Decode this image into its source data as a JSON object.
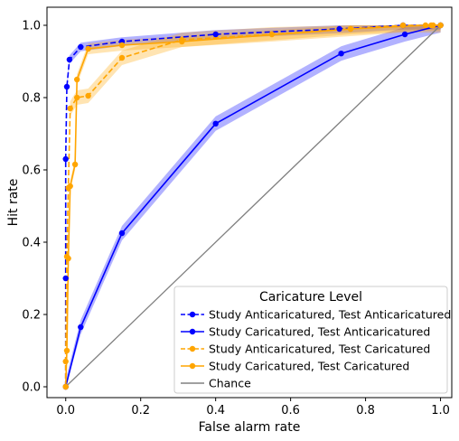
{
  "chart_data": {
    "type": "line",
    "xlabel": "False alarm rate",
    "ylabel": "Hit rate",
    "xlim": [
      -0.05,
      1.03
    ],
    "ylim": [
      -0.03,
      1.05
    ],
    "x_ticks": [
      "0.0",
      "0.2",
      "0.4",
      "0.6",
      "0.8",
      "1.0"
    ],
    "y_ticks": [
      "0.0",
      "0.2",
      "0.4",
      "0.6",
      "0.8",
      "1.0"
    ],
    "grid": false,
    "legend": {
      "title": "Caricature Level",
      "placement": "lower-right"
    },
    "series": [
      {
        "name": "Study Anticaricatured, Test Anticaricatured",
        "color": "#0000ff",
        "dash": "dashed",
        "marker": "circle",
        "band": 0.012,
        "points": [
          [
            0.0,
            0.0
          ],
          [
            0.0,
            0.3
          ],
          [
            0.0,
            0.63
          ],
          [
            0.003,
            0.83
          ],
          [
            0.01,
            0.905
          ],
          [
            0.04,
            0.94
          ],
          [
            0.15,
            0.955
          ],
          [
            0.4,
            0.975
          ],
          [
            0.73,
            0.99
          ],
          [
            0.9,
            1.0
          ],
          [
            1.0,
            1.0
          ]
        ]
      },
      {
        "name": "Study Caricatured, Test Anticaricatured",
        "color": "#0000ff",
        "dash": "solid",
        "marker": "circle",
        "band": 0.02,
        "points": [
          [
            0.0,
            0.0
          ],
          [
            0.04,
            0.165
          ],
          [
            0.15,
            0.425
          ],
          [
            0.4,
            0.728
          ],
          [
            0.735,
            0.922
          ],
          [
            0.905,
            0.975
          ],
          [
            1.0,
            1.0
          ]
        ]
      },
      {
        "name": "Study Anticaricatured, Test Caricatured",
        "color": "#ffa500",
        "dash": "dashed",
        "marker": "circle",
        "band": 0.02,
        "points": [
          [
            0.0,
            0.0
          ],
          [
            0.0,
            0.07
          ],
          [
            0.003,
            0.36
          ],
          [
            0.007,
            0.55
          ],
          [
            0.012,
            0.77
          ],
          [
            0.03,
            0.8
          ],
          [
            0.06,
            0.805
          ],
          [
            0.15,
            0.91
          ],
          [
            0.31,
            0.96
          ],
          [
            0.55,
            0.975
          ],
          [
            0.76,
            0.99
          ],
          [
            0.9,
            1.0
          ],
          [
            0.975,
            1.0
          ],
          [
            1.0,
            1.0
          ]
        ]
      },
      {
        "name": "Study Caricatured, Test Caricatured",
        "color": "#ffa500",
        "dash": "solid",
        "marker": "circle",
        "band": 0.015,
        "points": [
          [
            0.0,
            0.0
          ],
          [
            0.003,
            0.1
          ],
          [
            0.007,
            0.355
          ],
          [
            0.012,
            0.555
          ],
          [
            0.025,
            0.615
          ],
          [
            0.03,
            0.85
          ],
          [
            0.06,
            0.935
          ],
          [
            0.15,
            0.945
          ],
          [
            0.31,
            0.955
          ],
          [
            0.76,
            0.99
          ],
          [
            0.96,
            1.0
          ],
          [
            0.98,
            1.0
          ],
          [
            1.0,
            1.0
          ]
        ]
      },
      {
        "name": "Chance",
        "color": "#808080",
        "dash": "solid",
        "marker": "none",
        "band": 0,
        "points": [
          [
            0.0,
            0.0
          ],
          [
            1.0,
            1.0
          ]
        ]
      }
    ]
  }
}
